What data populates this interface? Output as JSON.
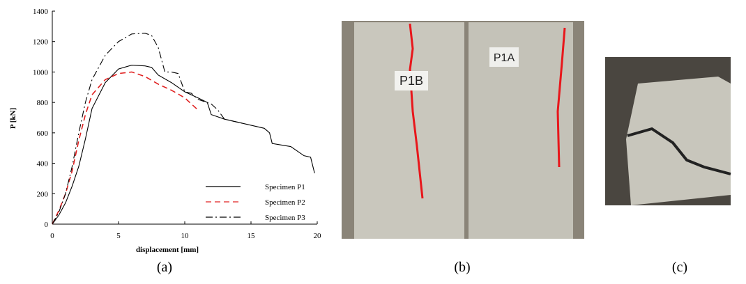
{
  "chart_data": {
    "type": "line",
    "xlabel": "displacement [mm]",
    "ylabel": "P [kN]",
    "xlim": [
      0,
      20
    ],
    "xticks": [
      0,
      5,
      10,
      15,
      20
    ],
    "ylim": [
      0,
      1400
    ],
    "yticks": [
      0,
      200,
      400,
      600,
      800,
      1000,
      1200,
      1400
    ],
    "legend": "lower right",
    "series": [
      {
        "name": "Specimen P1",
        "color": "#000000",
        "dash": "solid",
        "x": [
          0,
          0.5,
          1,
          1.5,
          2,
          2.5,
          3,
          4,
          5,
          6,
          7,
          7.5,
          8,
          9,
          10,
          11,
          11.7,
          12,
          13,
          14,
          15,
          16,
          16.4,
          16.6,
          18,
          19,
          19.5,
          19.8
        ],
        "values": [
          0,
          60,
          140,
          250,
          380,
          560,
          760,
          930,
          1020,
          1045,
          1040,
          1030,
          980,
          930,
          870,
          830,
          800,
          720,
          690,
          670,
          650,
          630,
          600,
          530,
          510,
          450,
          440,
          335
        ]
      },
      {
        "name": "Specimen P2",
        "color": "#e02020",
        "dash": "dashed",
        "x": [
          0,
          0.5,
          1,
          1.5,
          2,
          2.5,
          3,
          4,
          5,
          6,
          7,
          8,
          9,
          10,
          10.5,
          11
        ],
        "values": [
          0,
          90,
          200,
          350,
          550,
          720,
          850,
          950,
          990,
          1000,
          970,
          920,
          880,
          830,
          790,
          750
        ]
      },
      {
        "name": "Specimen P3",
        "color": "#000000",
        "dash": "dashdot",
        "x": [
          0,
          0.5,
          1,
          1.5,
          2,
          2.5,
          3,
          4,
          5,
          6,
          7,
          7.5,
          8,
          8.5,
          9,
          9.5,
          10,
          10.5,
          11,
          12,
          12.5,
          13,
          14,
          14.5
        ],
        "values": [
          0,
          80,
          200,
          380,
          600,
          800,
          950,
          1110,
          1200,
          1250,
          1255,
          1240,
          1160,
          1000,
          1000,
          990,
          870,
          860,
          820,
          790,
          750,
          690,
          670,
          660
        ]
      }
    ]
  },
  "panels": {
    "labels": [
      "(a)",
      "(b)",
      "(c)"
    ],
    "photo_texts": [
      "P1B",
      "P1A"
    ]
  }
}
